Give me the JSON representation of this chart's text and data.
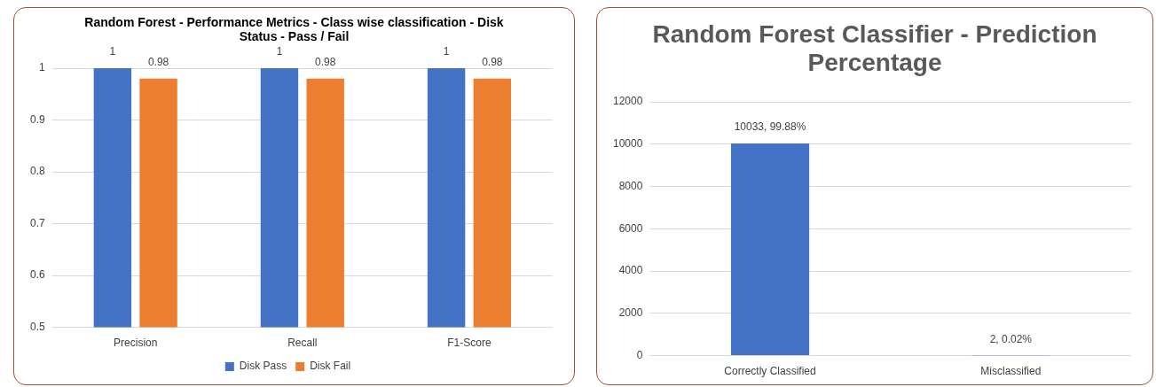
{
  "chart_data": [
    {
      "type": "bar",
      "title": "Random Forest - Performance Metrics - Class wise classification - Disk Status - Pass / Fail",
      "categories": [
        "Precision",
        "Recall",
        "F1-Score"
      ],
      "series": [
        {
          "name": "Disk Pass",
          "color": "#4472c4",
          "values": [
            1,
            1,
            1
          ]
        },
        {
          "name": "Disk Fail",
          "color": "#ed7d31",
          "values": [
            0.98,
            0.98,
            0.98
          ]
        }
      ],
      "ylim": [
        0.5,
        1
      ],
      "yticks": [
        0.5,
        0.6,
        0.7,
        0.8,
        0.9,
        1
      ],
      "grid": "y",
      "legend": "bottom",
      "data_labels": true
    },
    {
      "type": "bar",
      "title": "Random Forest Classifier - Prediction Percentage",
      "categories": [
        "Correctly Classified",
        "Misclassified"
      ],
      "values": [
        10033,
        2
      ],
      "color": "#4472c4",
      "value_labels": [
        "10033, 99.88%",
        "2, 0.02%"
      ],
      "ylim": [
        0,
        12000
      ],
      "yticks": [
        0,
        2000,
        4000,
        6000,
        8000,
        10000,
        12000
      ],
      "grid": "y"
    }
  ]
}
